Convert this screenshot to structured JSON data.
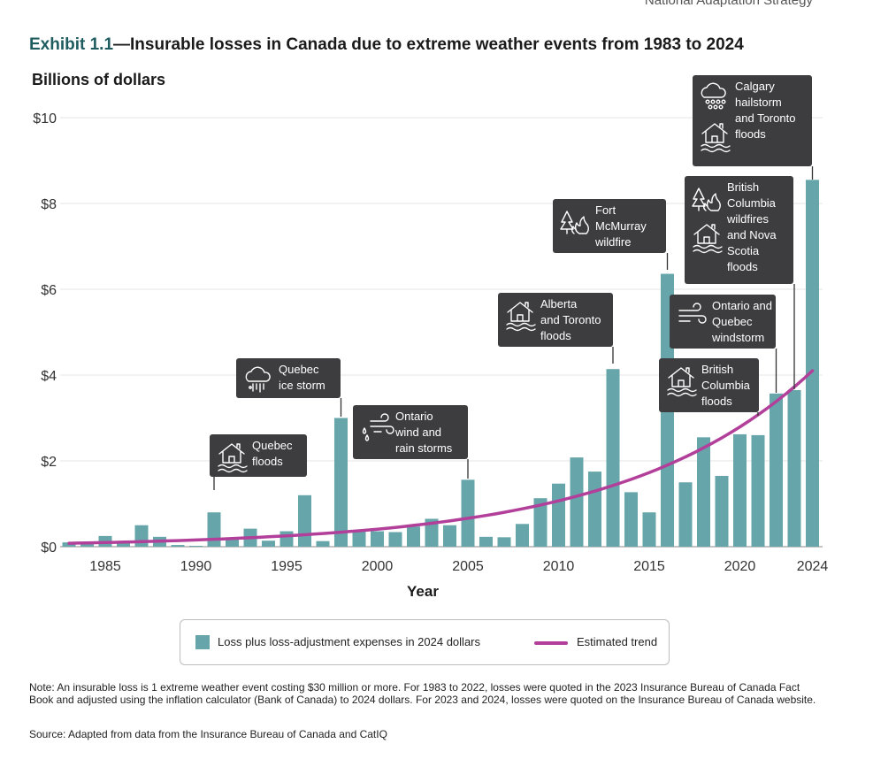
{
  "header_note": "National Adaptation Strategy",
  "title": {
    "exhibit": "Exhibit 1.1",
    "text": "—Insurable losses in Canada due to extreme weather events from 1983 to 2024"
  },
  "chart_data": {
    "type": "bar",
    "ylabel": "Billions of dollars",
    "xlabel": "Year",
    "ylim": [
      0,
      10
    ],
    "y_ticks": [
      {
        "value": 0,
        "label": "$0"
      },
      {
        "value": 2,
        "label": "$2"
      },
      {
        "value": 4,
        "label": "$4"
      },
      {
        "value": 6,
        "label": "$6"
      },
      {
        "value": 8,
        "label": "$8"
      },
      {
        "value": 10,
        "label": "$10"
      }
    ],
    "x_ticks": [
      1985,
      1990,
      1995,
      2000,
      2005,
      2010,
      2015,
      2020,
      2024
    ],
    "categories": [
      1983,
      1984,
      1985,
      1986,
      1987,
      1988,
      1989,
      1990,
      1991,
      1992,
      1993,
      1994,
      1995,
      1996,
      1997,
      1998,
      1999,
      2000,
      2001,
      2002,
      2003,
      2004,
      2005,
      2006,
      2007,
      2008,
      2009,
      2010,
      2011,
      2012,
      2013,
      2014,
      2015,
      2016,
      2017,
      2018,
      2019,
      2020,
      2021,
      2022,
      2023,
      2024
    ],
    "series": [
      {
        "name": "Loss plus loss-adjustment expenses in 2024 dollars",
        "color": "#66a6aa",
        "values": [
          0.1,
          0.07,
          0.25,
          0.12,
          0.5,
          0.23,
          0.04,
          0.02,
          0.8,
          0.2,
          0.42,
          0.14,
          0.36,
          1.2,
          0.13,
          3.0,
          0.37,
          0.36,
          0.34,
          0.47,
          0.65,
          0.5,
          1.56,
          0.23,
          0.22,
          0.53,
          1.13,
          1.47,
          2.08,
          1.75,
          4.14,
          1.27,
          0.8,
          6.36,
          1.5,
          2.55,
          1.65,
          2.62,
          2.6,
          3.57,
          3.65,
          8.55
        ]
      },
      {
        "name": "Estimated trend",
        "color": "#b2409a",
        "type": "line",
        "start": [
          1983,
          0.08
        ],
        "end": [
          2024,
          4.1
        ]
      }
    ],
    "annotations": [
      {
        "year": 1991,
        "icons": [
          "house-flood-icon"
        ],
        "lines": [
          "Quebec",
          "floods"
        ]
      },
      {
        "year": 1998,
        "icons": [
          "ice-storm-icon"
        ],
        "lines": [
          "Quebec",
          "ice storm"
        ]
      },
      {
        "year": 2005,
        "icons": [
          "wind-rain-icon"
        ],
        "lines": [
          "Ontario",
          "wind and",
          "rain storms"
        ]
      },
      {
        "year": 2013,
        "icons": [
          "house-flood-icon"
        ],
        "lines": [
          "Alberta",
          "and Toronto",
          "floods"
        ]
      },
      {
        "year": 2016,
        "icons": [
          "wildfire-icon"
        ],
        "lines": [
          "Fort",
          "McMurray",
          "wildfire"
        ]
      },
      {
        "year": 2021,
        "icons": [
          "house-flood-icon"
        ],
        "lines": [
          "British",
          "Columbia",
          "floods"
        ]
      },
      {
        "year": 2022,
        "icons": [
          "wind-icon"
        ],
        "lines": [
          "Ontario and",
          "Quebec",
          "windstorm"
        ]
      },
      {
        "year": 2023,
        "icons": [
          "wildfire-icon",
          "house-flood-icon"
        ],
        "lines": [
          "British",
          "Columbia",
          "wildfires",
          "and Nova",
          "Scotia",
          "floods"
        ]
      },
      {
        "year": 2024,
        "icons": [
          "hailstorm-icon",
          "house-flood-icon"
        ],
        "lines": [
          "Calgary",
          "hailstorm",
          "and Toronto",
          "floods"
        ]
      }
    ]
  },
  "legend": {
    "bar_label": "Loss plus loss-adjustment expenses in 2024 dollars",
    "line_label": "Estimated trend"
  },
  "note": "Note: An insurable loss is 1 extreme weather event costing $30 million or more. For 1983 to 2022, losses were quoted in the 2023 Insurance Bureau of Canada Fact Book and adjusted using the inflation calculator (Bank of Canada) to 2024 dollars. For 2023 and 2024, losses were quoted on the Insurance Bureau of Canada website.",
  "source": "Source: Adapted from data from the Insurance Bureau of Canada and CatIQ"
}
